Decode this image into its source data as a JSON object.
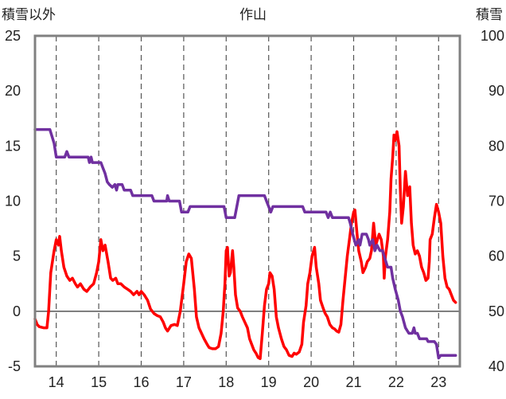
{
  "chart_data": {
    "type": "line",
    "title": "作山",
    "ylabel_left": "積雪以外",
    "ylabel_right": "積雪",
    "x_ticks": [
      "14",
      "15",
      "16",
      "17",
      "18",
      "19",
      "20",
      "21",
      "22",
      "23"
    ],
    "x_range": [
      13.5,
      23.5
    ],
    "ylim_left": [
      -5,
      25
    ],
    "yticks_left": [
      -5,
      0,
      5,
      10,
      15,
      20,
      25
    ],
    "ylim_right": [
      40,
      100
    ],
    "yticks_right": [
      40,
      50,
      60,
      70,
      80,
      90,
      100
    ],
    "grid": {
      "vertical_dashed": true,
      "horizontal": false
    },
    "series": [
      {
        "color": "#ff0000",
        "axis": "left",
        "points": [
          [
            13.5,
            -0.7
          ],
          [
            13.55,
            -1.2
          ],
          [
            13.6,
            -1.4
          ],
          [
            13.7,
            -1.5
          ],
          [
            13.78,
            -1.5
          ],
          [
            13.82,
            0
          ],
          [
            13.87,
            3.5
          ],
          [
            13.95,
            5.5
          ],
          [
            14.0,
            6.5
          ],
          [
            14.05,
            6
          ],
          [
            14.08,
            6.8
          ],
          [
            14.12,
            5.5
          ],
          [
            14.18,
            4
          ],
          [
            14.25,
            3.2
          ],
          [
            14.32,
            2.8
          ],
          [
            14.38,
            3
          ],
          [
            14.45,
            2.5
          ],
          [
            14.5,
            2.2
          ],
          [
            14.57,
            2.5
          ],
          [
            14.65,
            2
          ],
          [
            14.72,
            1.8
          ],
          [
            14.8,
            2.2
          ],
          [
            14.88,
            2.5
          ],
          [
            14.95,
            3.5
          ],
          [
            15.0,
            4.5
          ],
          [
            15.05,
            6.5
          ],
          [
            15.1,
            5.5
          ],
          [
            15.15,
            6
          ],
          [
            15.22,
            4.5
          ],
          [
            15.28,
            3
          ],
          [
            15.33,
            2.8
          ],
          [
            15.4,
            3
          ],
          [
            15.45,
            2.5
          ],
          [
            15.52,
            2.5
          ],
          [
            15.6,
            2.2
          ],
          [
            15.68,
            2
          ],
          [
            15.75,
            1.8
          ],
          [
            15.82,
            1.5
          ],
          [
            15.9,
            1.8
          ],
          [
            15.95,
            1.5
          ],
          [
            16.0,
            1.8
          ],
          [
            16.07,
            1.5
          ],
          [
            16.15,
            1
          ],
          [
            16.22,
            0.2
          ],
          [
            16.3,
            -0.2
          ],
          [
            16.38,
            -0.4
          ],
          [
            16.45,
            -0.5
          ],
          [
            16.52,
            -1
          ],
          [
            16.57,
            -1.5
          ],
          [
            16.62,
            -1.8
          ],
          [
            16.7,
            -1.3
          ],
          [
            16.78,
            -1.2
          ],
          [
            16.85,
            -1.3
          ],
          [
            16.92,
            0
          ],
          [
            17.0,
            2.5
          ],
          [
            17.06,
            4.5
          ],
          [
            17.12,
            5.2
          ],
          [
            17.18,
            4.8
          ],
          [
            17.25,
            2
          ],
          [
            17.3,
            -0.5
          ],
          [
            17.36,
            -1.5
          ],
          [
            17.42,
            -2
          ],
          [
            17.48,
            -2.5
          ],
          [
            17.55,
            -3
          ],
          [
            17.6,
            -3.3
          ],
          [
            17.68,
            -3.4
          ],
          [
            17.75,
            -3.4
          ],
          [
            17.82,
            -3.2
          ],
          [
            17.88,
            -2
          ],
          [
            17.93,
            0
          ],
          [
            17.97,
            2.5
          ],
          [
            18.0,
            5.5
          ],
          [
            18.03,
            5.8
          ],
          [
            18.07,
            3.2
          ],
          [
            18.1,
            3.5
          ],
          [
            18.15,
            5.5
          ],
          [
            18.18,
            4
          ],
          [
            18.22,
            1.5
          ],
          [
            18.27,
            0.3
          ],
          [
            18.33,
            0
          ],
          [
            18.38,
            -0.5
          ],
          [
            18.44,
            -1
          ],
          [
            18.5,
            -1.5
          ],
          [
            18.55,
            -2.5
          ],
          [
            18.6,
            -3
          ],
          [
            18.65,
            -3.5
          ],
          [
            18.7,
            -3.8
          ],
          [
            18.75,
            -4.2
          ],
          [
            18.8,
            -4.3
          ],
          [
            18.85,
            -2
          ],
          [
            18.9,
            0.5
          ],
          [
            18.95,
            2
          ],
          [
            19.0,
            2.5
          ],
          [
            19.03,
            3.5
          ],
          [
            19.08,
            3.2
          ],
          [
            19.13,
            2
          ],
          [
            19.18,
            -0.5
          ],
          [
            19.23,
            -1.5
          ],
          [
            19.3,
            -2.5
          ],
          [
            19.36,
            -3.2
          ],
          [
            19.42,
            -3.5
          ],
          [
            19.48,
            -4
          ],
          [
            19.55,
            -4.1
          ],
          [
            19.6,
            -3.8
          ],
          [
            19.65,
            -3.9
          ],
          [
            19.72,
            -3.7
          ],
          [
            19.78,
            -3
          ],
          [
            19.82,
            -1
          ],
          [
            19.88,
            0.5
          ],
          [
            19.92,
            2.5
          ],
          [
            19.97,
            3.5
          ],
          [
            20.02,
            5
          ],
          [
            20.08,
            5.8
          ],
          [
            20.12,
            4
          ],
          [
            20.18,
            2.5
          ],
          [
            20.22,
            1
          ],
          [
            20.28,
            0.3
          ],
          [
            20.33,
            -0.2
          ],
          [
            20.38,
            -0.5
          ],
          [
            20.44,
            -1.2
          ],
          [
            20.5,
            -1.5
          ],
          [
            20.55,
            -1.6
          ],
          [
            20.6,
            -1.8
          ],
          [
            20.65,
            -1.9
          ],
          [
            20.7,
            -1.2
          ],
          [
            20.75,
            1
          ],
          [
            20.8,
            3
          ],
          [
            20.85,
            5
          ],
          [
            20.9,
            6.5
          ],
          [
            20.95,
            8
          ],
          [
            21.0,
            9
          ],
          [
            21.03,
            9.2
          ],
          [
            21.08,
            7
          ],
          [
            21.12,
            5.5
          ],
          [
            21.18,
            4.5
          ],
          [
            21.22,
            3.5
          ],
          [
            21.28,
            4
          ],
          [
            21.32,
            4.5
          ],
          [
            21.38,
            4.8
          ],
          [
            21.42,
            5.5
          ],
          [
            21.47,
            8
          ],
          [
            21.52,
            6
          ],
          [
            21.56,
            6.5
          ],
          [
            21.6,
            7
          ],
          [
            21.65,
            6.5
          ],
          [
            21.7,
            5
          ],
          [
            21.72,
            3
          ],
          [
            21.75,
            5
          ],
          [
            21.8,
            6.5
          ],
          [
            21.85,
            9
          ],
          [
            21.88,
            12
          ],
          [
            21.92,
            14
          ],
          [
            21.95,
            16
          ],
          [
            21.98,
            15.5
          ],
          [
            22.02,
            16.3
          ],
          [
            22.07,
            15
          ],
          [
            22.1,
            11
          ],
          [
            22.13,
            8
          ],
          [
            22.17,
            9.5
          ],
          [
            22.22,
            12.7
          ],
          [
            22.27,
            10.5
          ],
          [
            22.32,
            11.3
          ],
          [
            22.36,
            8
          ],
          [
            22.4,
            6
          ],
          [
            22.45,
            5.2
          ],
          [
            22.5,
            5.5
          ],
          [
            22.55,
            5
          ],
          [
            22.6,
            4
          ],
          [
            22.65,
            3.5
          ],
          [
            22.7,
            2.8
          ],
          [
            22.75,
            3
          ],
          [
            22.78,
            4.5
          ],
          [
            22.8,
            6.5
          ],
          [
            22.85,
            7
          ],
          [
            22.9,
            8.5
          ],
          [
            22.95,
            9.7
          ],
          [
            23.0,
            9
          ],
          [
            23.05,
            8
          ],
          [
            23.1,
            5
          ],
          [
            23.15,
            3
          ],
          [
            23.2,
            2.2
          ],
          [
            23.25,
            2
          ],
          [
            23.3,
            1.5
          ],
          [
            23.35,
            1
          ],
          [
            23.4,
            0.8
          ]
        ]
      },
      {
        "color": "#7030a0",
        "axis": "right",
        "points": [
          [
            13.5,
            83
          ],
          [
            13.85,
            83
          ],
          [
            13.95,
            80.5
          ],
          [
            14.0,
            78
          ],
          [
            14.2,
            78
          ],
          [
            14.25,
            79
          ],
          [
            14.3,
            78
          ],
          [
            14.75,
            78
          ],
          [
            14.78,
            77
          ],
          [
            14.82,
            78
          ],
          [
            14.85,
            77
          ],
          [
            15.05,
            77
          ],
          [
            15.1,
            76
          ],
          [
            15.15,
            75
          ],
          [
            15.2,
            73.5
          ],
          [
            15.25,
            73
          ],
          [
            15.32,
            72.5
          ],
          [
            15.38,
            73
          ],
          [
            15.42,
            72
          ],
          [
            15.45,
            73
          ],
          [
            15.55,
            73
          ],
          [
            15.6,
            72
          ],
          [
            15.75,
            72
          ],
          [
            15.8,
            71
          ],
          [
            16.25,
            71
          ],
          [
            16.3,
            70
          ],
          [
            16.6,
            70
          ],
          [
            16.62,
            71
          ],
          [
            16.66,
            70
          ],
          [
            16.9,
            70
          ],
          [
            16.95,
            68
          ],
          [
            17.1,
            68
          ],
          [
            17.15,
            69
          ],
          [
            17.95,
            69
          ],
          [
            18.0,
            67
          ],
          [
            18.2,
            67
          ],
          [
            18.3,
            71
          ],
          [
            18.9,
            71
          ],
          [
            18.95,
            70
          ],
          [
            19.0,
            69
          ],
          [
            19.05,
            68
          ],
          [
            19.1,
            69
          ],
          [
            19.8,
            69
          ],
          [
            19.85,
            68
          ],
          [
            20.35,
            68
          ],
          [
            20.4,
            67
          ],
          [
            20.45,
            68
          ],
          [
            20.5,
            67
          ],
          [
            20.88,
            67
          ],
          [
            20.92,
            66
          ],
          [
            20.98,
            64
          ],
          [
            21.05,
            62
          ],
          [
            21.12,
            63
          ],
          [
            21.15,
            62
          ],
          [
            21.2,
            64
          ],
          [
            21.3,
            64
          ],
          [
            21.35,
            63
          ],
          [
            21.38,
            62
          ],
          [
            21.45,
            63
          ],
          [
            21.5,
            61
          ],
          [
            21.55,
            62
          ],
          [
            21.62,
            61
          ],
          [
            21.68,
            61
          ],
          [
            21.72,
            60
          ],
          [
            21.8,
            58
          ],
          [
            21.88,
            58
          ],
          [
            21.92,
            56
          ],
          [
            21.98,
            54
          ],
          [
            22.05,
            52
          ],
          [
            22.1,
            50
          ],
          [
            22.15,
            49
          ],
          [
            22.22,
            47
          ],
          [
            22.3,
            46
          ],
          [
            22.38,
            46
          ],
          [
            22.42,
            47
          ],
          [
            22.45,
            46
          ],
          [
            22.5,
            46
          ],
          [
            22.55,
            45
          ],
          [
            22.65,
            45
          ],
          [
            22.72,
            45
          ],
          [
            22.75,
            44.5
          ],
          [
            22.9,
            44.5
          ],
          [
            22.95,
            44
          ],
          [
            23.0,
            41.5
          ],
          [
            23.05,
            42
          ],
          [
            23.15,
            42
          ],
          [
            23.4,
            42
          ]
        ]
      }
    ]
  }
}
